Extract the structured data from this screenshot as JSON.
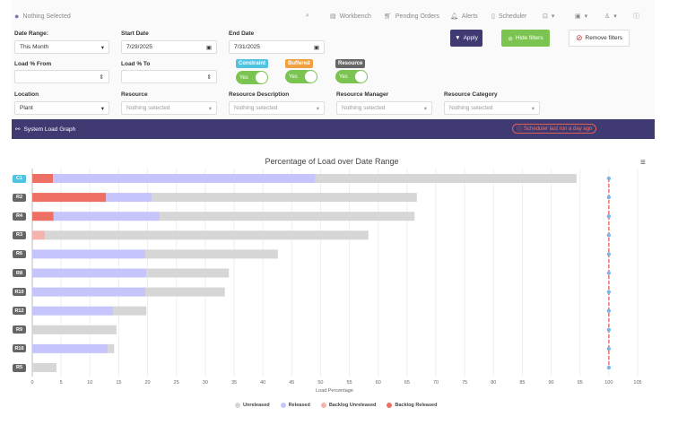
{
  "header": {
    "location": "Nothing Selected",
    "nav": [
      "Workbench",
      "Pending Orders",
      "Alerts",
      "Scheduler"
    ]
  },
  "filters": {
    "date_range_label": "Date Range:",
    "date_range_value": "This Month",
    "start_date_label": "Start Date",
    "start_date_value": "7/29/2025",
    "end_date_label": "End Date",
    "end_date_value": "7/31/2025",
    "load_from_label": "Load % From",
    "load_to_label": "Load % To",
    "toggles": [
      {
        "label": "Constraint",
        "value": "Yes",
        "color": "#4fc3e0"
      },
      {
        "label": "Buffered",
        "value": "Yes",
        "color": "#f0a040"
      },
      {
        "label": "Resource",
        "value": "Yes",
        "color": "#666666"
      }
    ],
    "location_label": "Location",
    "location_value": "Plant",
    "resource_label": "Resource",
    "resource_description_label": "Resource Description",
    "resource_manager_label": "Resource Manager",
    "resource_category_label": "Resource Category",
    "nothing_selected": "Nothing selected"
  },
  "buttons": {
    "apply": "Apply",
    "hide_filters": "Hide filters",
    "remove_filters": "Remove filters"
  },
  "panel": {
    "title": "System Load Graph",
    "status": "Scheduler last run a day ago"
  },
  "chart_data": {
    "type": "bar",
    "orientation": "horizontal",
    "stacked": true,
    "title": "Percentage of Load over Date Range",
    "xlabel": "Load Percentage",
    "xlim": [
      0,
      105
    ],
    "x_ticks": [
      0,
      5,
      10,
      15,
      20,
      25,
      30,
      35,
      40,
      45,
      50,
      55,
      60,
      65,
      70,
      75,
      80,
      85,
      90,
      95,
      100,
      105
    ],
    "categories": [
      "C1",
      "R2",
      "R4",
      "R3",
      "R6",
      "R8",
      "R10",
      "R12",
      "R9",
      "R16",
      "R5"
    ],
    "series": [
      {
        "name": "Backlog Released",
        "color": "#ee6f64",
        "values": [
          3.6,
          12.8,
          3.7,
          0,
          0,
          0,
          0,
          0,
          0,
          0,
          0
        ]
      },
      {
        "name": "Backlog Unreleased",
        "color": "#f5b3ae",
        "values": [
          0,
          0,
          0,
          2.2,
          0,
          0,
          0,
          0,
          0,
          0,
          0
        ]
      },
      {
        "name": "Released",
        "color": "#c5c5fb",
        "values": [
          45.5,
          7.9,
          18.4,
          0,
          19.6,
          19.8,
          19.6,
          14.0,
          0,
          13.1,
          0
        ]
      },
      {
        "name": "Unreleased",
        "color": "#d6d6d6",
        "values": [
          45.3,
          46.0,
          44.2,
          56.1,
          23.0,
          14.3,
          13.8,
          5.8,
          14.6,
          1.1,
          4.2
        ]
      }
    ],
    "legend_order": [
      "Unreleased",
      "Released",
      "Backlog Unreleased",
      "Backlog Released"
    ],
    "target_line": {
      "value": 100,
      "color": "#ee6f64",
      "marker_color": "#7cb5ec"
    },
    "highlighted_category": "C1",
    "grid": true,
    "legend": "bottom"
  }
}
